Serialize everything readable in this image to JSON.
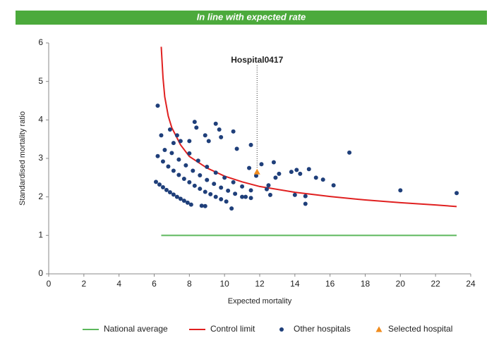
{
  "chart_data": {
    "type": "scatter",
    "title": "In line with expected rate",
    "xlabel": "Expected mortality",
    "ylabel": "Standardised mortality ratio",
    "xlim": [
      0,
      24
    ],
    "xticks": [
      0,
      2,
      4,
      6,
      8,
      10,
      12,
      14,
      16,
      18,
      20,
      22,
      24
    ],
    "ylim": [
      0,
      6
    ],
    "yticks": [
      0,
      1,
      2,
      3,
      4,
      5,
      6
    ],
    "banner_color": "#4caa3c",
    "series": [
      {
        "name": "National average",
        "kind": "line",
        "color": "#5cb85c",
        "x": [
          6.4,
          23.2
        ],
        "values": [
          1,
          1
        ]
      },
      {
        "name": "Control limit",
        "kind": "line",
        "color": "#e02020",
        "x": [
          6.4,
          6.5,
          6.6,
          6.8,
          7,
          7.5,
          8,
          9,
          10,
          11,
          12,
          14,
          16,
          18,
          20,
          22,
          23.2
        ],
        "values": [
          5.9,
          5.1,
          4.6,
          4.1,
          3.8,
          3.35,
          3.05,
          2.75,
          2.54,
          2.39,
          2.27,
          2.12,
          2.01,
          1.92,
          1.85,
          1.79,
          1.75
        ]
      },
      {
        "name": "Other hospitals",
        "kind": "circle",
        "color": "#1f3f7a",
        "x": [
          6.1,
          6.3,
          6.5,
          6.7,
          6.9,
          7.1,
          7.3,
          7.5,
          7.7,
          7.9,
          8.1,
          6.2,
          6.5,
          6.8,
          7.1,
          7.4,
          7.7,
          8.0,
          8.3,
          8.6,
          8.9,
          9.2,
          9.5,
          9.8,
          10.1,
          7.0,
          7.4,
          7.8,
          8.2,
          8.6,
          9.0,
          9.4,
          9.8,
          10.2,
          10.6,
          11.0,
          8.0,
          8.5,
          9.0,
          9.5,
          10.0,
          10.5,
          11.0,
          11.5,
          6.2,
          6.9,
          6.4,
          6.6,
          7.1,
          7.3,
          7.5,
          8.0,
          8.3,
          8.4,
          8.9,
          9.1,
          9.5,
          9.7,
          9.8,
          10.5,
          10.7,
          11.5,
          11.4,
          12.1,
          12.8,
          12.5,
          12.9,
          13.1,
          13.8,
          14.1,
          14.3,
          14.8,
          15.2,
          15.6,
          16.2,
          17.1,
          20.0,
          23.2,
          14.0,
          14.6,
          14.6,
          12.4,
          12.6,
          11.8,
          11.2,
          11.5,
          10.4,
          8.7,
          8.9
        ],
        "values": [
          2.39,
          2.32,
          2.25,
          2.18,
          2.12,
          2.06,
          2.0,
          1.95,
          1.9,
          1.85,
          1.8,
          3.06,
          2.92,
          2.79,
          2.68,
          2.57,
          2.47,
          2.38,
          2.29,
          2.21,
          2.13,
          2.07,
          2.0,
          1.94,
          1.88,
          3.14,
          2.97,
          2.82,
          2.68,
          2.56,
          2.44,
          2.34,
          2.24,
          2.16,
          2.08,
          2.0,
          3.13,
          2.94,
          2.78,
          2.63,
          2.5,
          2.38,
          2.27,
          2.17,
          4.37,
          3.75,
          3.6,
          3.22,
          3.4,
          3.6,
          3.45,
          3.45,
          3.95,
          3.8,
          3.6,
          3.45,
          3.9,
          3.75,
          3.55,
          3.7,
          3.25,
          3.35,
          2.75,
          2.85,
          2.9,
          2.3,
          2.5,
          2.6,
          2.65,
          2.7,
          2.6,
          2.72,
          2.5,
          2.45,
          2.3,
          3.15,
          2.17,
          2.1,
          2.05,
          2.02,
          1.82,
          2.2,
          2.05,
          2.55,
          2.0,
          1.97,
          1.7,
          1.77,
          1.76
        ]
      },
      {
        "name": "Selected hospital",
        "kind": "triangle",
        "color": "#f08c1e",
        "x": [
          11.85
        ],
        "values": [
          2.65
        ]
      }
    ],
    "annotations": [
      {
        "text": "Hospital0417",
        "x": 11.85
      }
    ]
  }
}
